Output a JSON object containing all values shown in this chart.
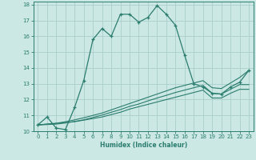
{
  "title": "",
  "xlabel": "Humidex (Indice chaleur)",
  "bg_color": "#cce8e4",
  "grid_color": "#aaceca",
  "line_color": "#2a7d6e",
  "xlim": [
    -0.5,
    23.5
  ],
  "ylim": [
    10,
    18.2
  ],
  "xticks": [
    0,
    1,
    2,
    3,
    4,
    5,
    6,
    7,
    8,
    9,
    10,
    11,
    12,
    13,
    14,
    15,
    16,
    17,
    18,
    19,
    20,
    21,
    22,
    23
  ],
  "yticks": [
    10,
    11,
    12,
    13,
    14,
    15,
    16,
    17,
    18
  ],
  "main_x": [
    0,
    1,
    2,
    3,
    4,
    5,
    6,
    7,
    8,
    9,
    10,
    11,
    12,
    13,
    14,
    15,
    16,
    17,
    18,
    19,
    20,
    21,
    22,
    23
  ],
  "main_y": [
    10.4,
    10.9,
    10.2,
    10.1,
    11.5,
    13.2,
    15.8,
    16.5,
    16.0,
    17.4,
    17.4,
    16.9,
    17.2,
    17.95,
    17.4,
    16.7,
    14.8,
    13.0,
    12.8,
    12.4,
    12.35,
    12.8,
    13.1,
    13.85
  ],
  "line2_x": [
    0,
    1,
    2,
    3,
    4,
    5,
    6,
    7,
    8,
    9,
    10,
    11,
    12,
    13,
    14,
    15,
    16,
    17,
    18,
    19,
    20,
    21,
    22,
    23
  ],
  "line2_y": [
    10.4,
    10.45,
    10.5,
    10.55,
    10.6,
    10.7,
    10.8,
    10.9,
    11.05,
    11.2,
    11.4,
    11.55,
    11.7,
    11.85,
    12.0,
    12.15,
    12.3,
    12.45,
    12.6,
    12.1,
    12.1,
    12.4,
    12.65,
    12.65
  ],
  "line3_x": [
    0,
    1,
    2,
    3,
    4,
    5,
    6,
    7,
    8,
    9,
    10,
    11,
    12,
    13,
    14,
    15,
    16,
    17,
    18,
    19,
    20,
    21,
    22,
    23
  ],
  "line3_y": [
    10.4,
    10.45,
    10.5,
    10.6,
    10.72,
    10.85,
    11.0,
    11.15,
    11.35,
    11.55,
    11.75,
    11.95,
    12.15,
    12.35,
    12.55,
    12.75,
    12.9,
    13.05,
    13.2,
    12.75,
    12.7,
    13.05,
    13.4,
    13.85
  ],
  "line4_x": [
    0,
    1,
    2,
    3,
    4,
    5,
    6,
    7,
    8,
    9,
    10,
    11,
    12,
    13,
    14,
    15,
    16,
    17,
    18,
    19,
    20,
    21,
    22,
    23
  ],
  "line4_y": [
    10.4,
    10.42,
    10.45,
    10.52,
    10.62,
    10.72,
    10.87,
    11.02,
    11.2,
    11.37,
    11.57,
    11.72,
    11.92,
    12.1,
    12.27,
    12.45,
    12.6,
    12.75,
    12.9,
    12.4,
    12.35,
    12.65,
    12.95,
    12.95
  ]
}
